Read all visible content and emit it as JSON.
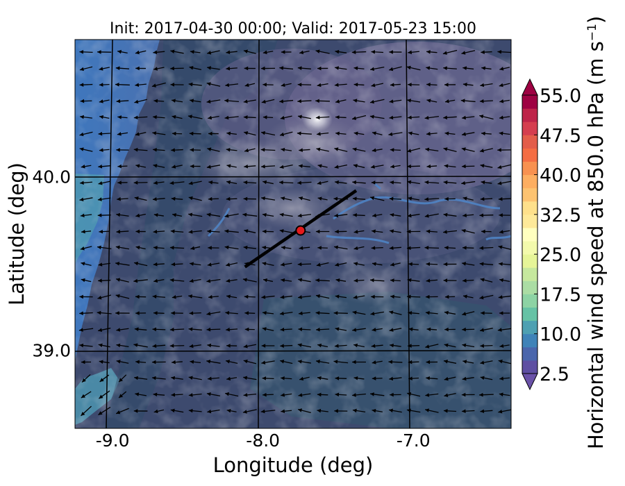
{
  "chart_data": {
    "type": "heatmap",
    "title": "Init: 2017-04-30 00:00; Valid: 2017-05-23 15:00",
    "xlabel": "Longitude (deg)",
    "ylabel": "Latitude (deg)",
    "xlim": [
      -9.25,
      -6.35
    ],
    "ylim": [
      38.55,
      40.79
    ],
    "x_ticks": [
      {
        "value": -9.0,
        "label": "-9.0"
      },
      {
        "value": -8.0,
        "label": "-8.0"
      },
      {
        "value": -7.0,
        "label": "-7.0"
      }
    ],
    "y_ticks": [
      {
        "value": 40.0,
        "label": "40.0"
      },
      {
        "value": 39.0,
        "label": "39.0"
      }
    ],
    "grid": true,
    "cross_section_line": {
      "start": [
        -8.12,
        39.48
      ],
      "end": [
        -7.38,
        39.92
      ],
      "color": "#000000"
    },
    "marker": {
      "lon": -7.75,
      "lat": 39.69,
      "color": "#e41a1c"
    },
    "wind_vectors": {
      "direction": "from east (arrows point west)",
      "color": "#000000"
    },
    "colorbar": {
      "label_parts": [
        "Horizontal wind speed at 850.0 hPa (m s",
        "−1",
        ")"
      ],
      "min": 2.5,
      "max": 55.0,
      "step": 2.5,
      "extend": "both",
      "tick_labels": [
        "55.0",
        "47.5",
        "40.0",
        "32.5",
        "25.0",
        "17.5",
        "10.0",
        "2.5"
      ],
      "tick_values": [
        55.0,
        47.5,
        40.0,
        32.5,
        25.0,
        17.5,
        10.0,
        2.5
      ],
      "colors": [
        "#5e4fa2",
        "#4a66ac",
        "#3f83b8",
        "#4ea0b2",
        "#66c2a5",
        "#8dd3a4",
        "#abdda4",
        "#c6e89e",
        "#e6f598",
        "#f3faac",
        "#ffffbf",
        "#fee999",
        "#fee08b",
        "#fdc371",
        "#fdae61",
        "#f89150",
        "#f46d43",
        "#e35d4a",
        "#d53e4f",
        "#be2449",
        "#9e0142"
      ],
      "under_color": "#6a52a8",
      "over_color": "#9e0142"
    }
  }
}
